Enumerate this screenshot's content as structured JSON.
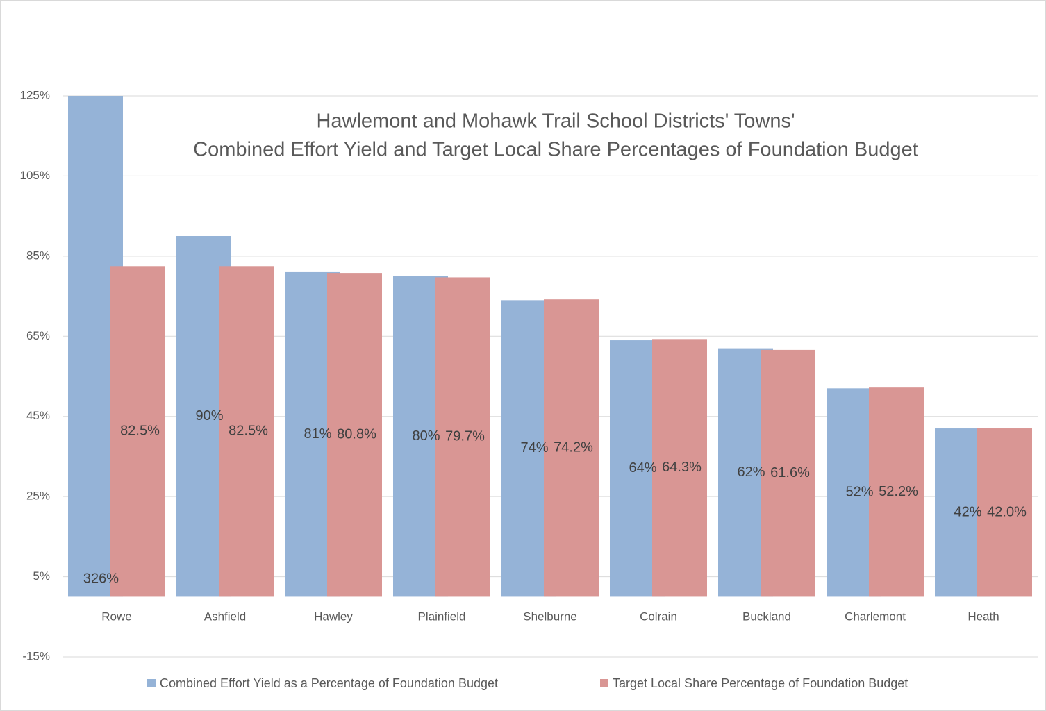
{
  "chart_data": {
    "type": "bar",
    "title": [
      "Hawlemont and Mohawk Trail School Districts' Towns'",
      "Combined Effort Yield and Target Local Share Percentages of Foundation Budget"
    ],
    "categories": [
      "Rowe",
      "Ashfield",
      "Hawley",
      "Plainfield",
      "Shelburne",
      "Colrain",
      "Buckland",
      "Charlemont",
      "Heath"
    ],
    "series": [
      {
        "name": "Combined Effort Yield as a Percentage of Foundation Budget",
        "color": "#95b3d7",
        "values": [
          326,
          90,
          81,
          80,
          74,
          64,
          62,
          52,
          42
        ],
        "value_labels": [
          "326%",
          "90%",
          "81%",
          "80%",
          "74%",
          "64%",
          "62%",
          "52%",
          "42%"
        ]
      },
      {
        "name": "Target Local Share Percentage of Foundation Budget",
        "color": "#d99694",
        "values": [
          82.5,
          82.5,
          80.8,
          79.7,
          74.2,
          64.3,
          61.6,
          52.2,
          42.0
        ],
        "value_labels": [
          "82.5%",
          "82.5%",
          "80.8%",
          "79.7%",
          "74.2%",
          "64.3%",
          "61.6%",
          "52.2%",
          "42.0%"
        ]
      }
    ],
    "ylim": [
      -15,
      125
    ],
    "yticks": [
      {
        "value": -15,
        "label": "-15%"
      },
      {
        "value": 5,
        "label": "5%"
      },
      {
        "value": 25,
        "label": "25%"
      },
      {
        "value": 45,
        "label": "45%"
      },
      {
        "value": 65,
        "label": "65%"
      },
      {
        "value": 85,
        "label": "85%"
      },
      {
        "value": 105,
        "label": "105%"
      },
      {
        "value": 125,
        "label": "125%"
      }
    ],
    "grid": true,
    "legend": "bottom"
  }
}
